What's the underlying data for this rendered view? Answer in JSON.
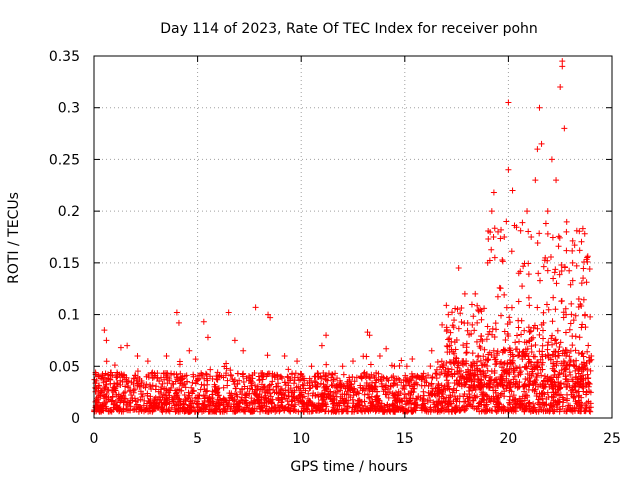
{
  "chart_data": {
    "type": "scatter",
    "title": "Day 114 of 2023, Rate Of TEC Index for receiver pohn",
    "xlabel": "GPS time / hours",
    "ylabel": "ROTI / TECUs",
    "xlim": [
      0,
      25
    ],
    "ylim": [
      0,
      0.35
    ],
    "xticks": [
      0,
      5,
      10,
      15,
      20,
      25
    ],
    "xtick_labels": [
      "0",
      "5",
      "10",
      "15",
      "20",
      "25"
    ],
    "yticks": [
      0,
      0.05,
      0.1,
      0.15,
      0.2,
      0.25,
      0.3,
      0.35
    ],
    "ytick_labels": [
      "0",
      "0.05",
      "0.1",
      "0.15",
      "0.2",
      "0.25",
      "0.3",
      "0.35"
    ],
    "grid": true,
    "marker": "plus",
    "color": "#ff0000",
    "x_data_extent": [
      0,
      24
    ],
    "series": [
      {
        "name": "ROTI",
        "description": "dense background cloud 0.005-0.05 TECU across the day; enhanced activity 17-24 h",
        "points": [
          [
            0.1,
            0.042
          ],
          [
            0.5,
            0.085
          ],
          [
            0.6,
            0.075
          ],
          [
            1.3,
            0.068
          ],
          [
            1.6,
            0.07
          ],
          [
            2.1,
            0.06
          ],
          [
            2.6,
            0.055
          ],
          [
            3.5,
            0.06
          ],
          [
            4.0,
            0.102
          ],
          [
            4.1,
            0.092
          ],
          [
            4.6,
            0.065
          ],
          [
            5.3,
            0.093
          ],
          [
            5.5,
            0.078
          ],
          [
            6.5,
            0.102
          ],
          [
            6.8,
            0.075
          ],
          [
            7.2,
            0.065
          ],
          [
            7.8,
            0.107
          ],
          [
            8.4,
            0.1
          ],
          [
            8.5,
            0.097
          ],
          [
            9.2,
            0.06
          ],
          [
            9.8,
            0.055
          ],
          [
            10.5,
            0.05
          ],
          [
            11.0,
            0.07
          ],
          [
            11.2,
            0.08
          ],
          [
            12.0,
            0.05
          ],
          [
            12.5,
            0.055
          ],
          [
            13.2,
            0.083
          ],
          [
            13.3,
            0.08
          ],
          [
            13.8,
            0.06
          ],
          [
            14.1,
            0.067
          ],
          [
            14.5,
            0.05
          ],
          [
            15.1,
            0.05
          ],
          [
            15.6,
            0.04
          ],
          [
            16.3,
            0.065
          ],
          [
            16.8,
            0.09
          ],
          [
            17.1,
            0.1
          ],
          [
            17.6,
            0.145
          ],
          [
            17.9,
            0.12
          ],
          [
            18.4,
            0.12
          ],
          [
            18.7,
            0.095
          ],
          [
            19.0,
            0.15
          ],
          [
            19.2,
            0.2
          ],
          [
            19.3,
            0.218
          ],
          [
            19.5,
            0.18
          ],
          [
            19.8,
            0.175
          ],
          [
            19.9,
            0.19
          ],
          [
            20.0,
            0.24
          ],
          [
            20.0,
            0.305
          ],
          [
            20.2,
            0.22
          ],
          [
            20.5,
            0.14
          ],
          [
            20.9,
            0.2
          ],
          [
            21.1,
            0.175
          ],
          [
            21.3,
            0.23
          ],
          [
            21.4,
            0.26
          ],
          [
            21.5,
            0.3
          ],
          [
            21.6,
            0.265
          ],
          [
            21.9,
            0.2
          ],
          [
            22.1,
            0.25
          ],
          [
            22.3,
            0.23
          ],
          [
            22.5,
            0.32
          ],
          [
            22.6,
            0.345
          ],
          [
            22.6,
            0.34
          ],
          [
            22.7,
            0.28
          ],
          [
            22.8,
            0.18
          ],
          [
            23.1,
            0.15
          ],
          [
            23.4,
            0.115
          ],
          [
            23.7,
            0.1
          ],
          [
            24.0,
            0.06
          ]
        ]
      }
    ]
  }
}
